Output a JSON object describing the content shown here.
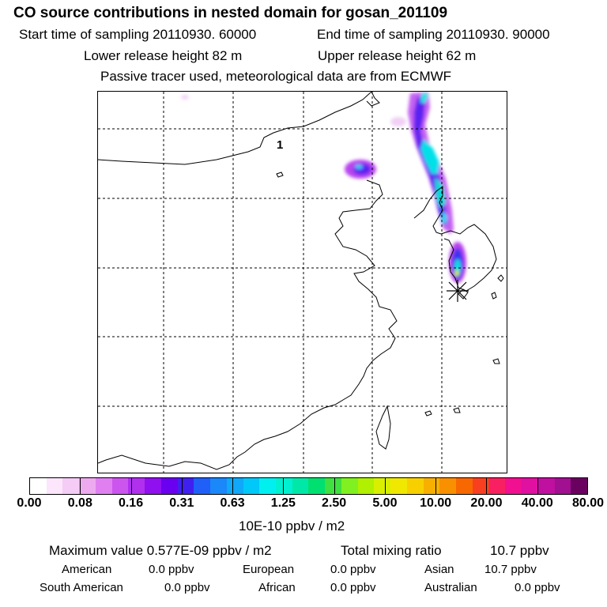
{
  "header": {
    "title": "CO  source contributions in nested domain for gosan_201109",
    "start_label": "Start time of sampling 20110930. 60000",
    "end_label": "End time of sampling 20110930. 90000",
    "lower_label": "Lower release height   82 m",
    "upper_label": "Upper release height   62 m",
    "tracer_note": "Passive tracer used, meteorological data are from ECMWF"
  },
  "map": {
    "region_label": "1",
    "receptor": "Gosan"
  },
  "colorbar": {
    "colors": [
      "#ffffff",
      "#fbe6fb",
      "#f5ccf5",
      "#eeaaee",
      "#e080f0",
      "#cc55ee",
      "#b030ee",
      "#9010f0",
      "#6a00f0",
      "#4020f0",
      "#2060f8",
      "#1a88f8",
      "#10a8f8",
      "#00c8f8",
      "#00f0f0",
      "#00f0d0",
      "#00e8a8",
      "#00e070",
      "#40e040",
      "#80f020",
      "#b0f000",
      "#d8f000",
      "#f0e800",
      "#f8d000",
      "#f8b000",
      "#f89000",
      "#f86800",
      "#f84020",
      "#f82060",
      "#f01090",
      "#e010a0",
      "#c010a0",
      "#a01090",
      "#6a0060"
    ],
    "tick_labels": [
      "0.00",
      "0.08",
      "0.16",
      "0.31",
      "0.63",
      "1.25",
      "2.50",
      "5.00",
      "10.00",
      "20.00",
      "40.00",
      "80.00"
    ],
    "unit": "10E-10 ppbv / m2"
  },
  "summary": {
    "max_label": "Maximum value  0.577E-09 ppbv / m2",
    "total_label": "Total mixing ratio",
    "total_value": "10.7 ppbv",
    "regions": [
      {
        "name": "American",
        "value": "0.0 ppbv"
      },
      {
        "name": "European",
        "value": "0.0 ppbv"
      },
      {
        "name": "Asian",
        "value": "10.7 ppbv"
      },
      {
        "name": "South American",
        "value": "0.0 ppbv"
      },
      {
        "name": "African",
        "value": "0.0 ppbv"
      },
      {
        "name": "Australian",
        "value": "0.0 ppbv"
      }
    ]
  }
}
